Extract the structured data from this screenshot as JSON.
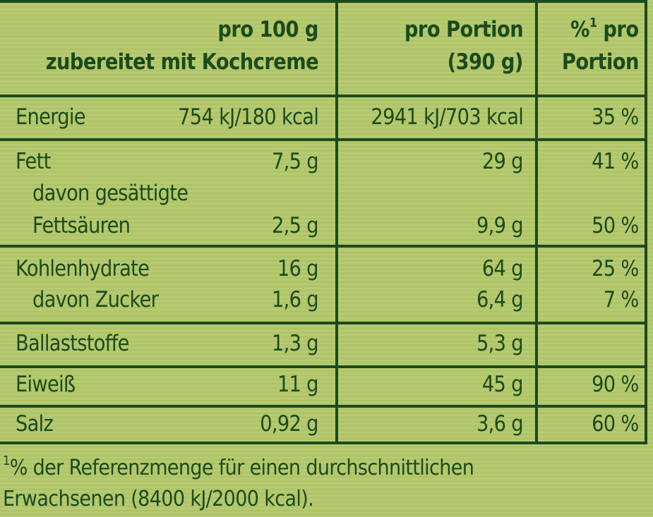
{
  "header": {
    "col100_line1": "pro 100 g",
    "col100_line2": "zubereitet mit Kochcreme",
    "colPortion_line1": "pro Portion",
    "colPortion_line2": "(390 g)",
    "colRef_sup": "1",
    "colRef_pct": "%",
    "colRef_line1_rest": " pro",
    "colRef_line2": "Portion"
  },
  "rows": {
    "energie": {
      "label": "Energie",
      "per100": "754 kJ/180 kcal",
      "portion": "2941 kJ/703 kcal",
      "ref": "35 %"
    },
    "fett": {
      "label": "Fett",
      "per100": "7,5 g",
      "portion": "29 g",
      "ref": "41 %"
    },
    "gesaettigte": {
      "label_line1": "davon gesättigte",
      "label_line2": "Fettsäuren",
      "per100": "2,5 g",
      "portion": "9,9 g",
      "ref": "50 %"
    },
    "kohlenhydrate": {
      "label": "Kohlenhydrate",
      "per100": "16 g",
      "portion": "64 g",
      "ref": "25 %"
    },
    "zucker": {
      "label": "davon Zucker",
      "per100": "1,6 g",
      "portion": "6,4 g",
      "ref": "7 %"
    },
    "ballaststoffe": {
      "label": "Ballaststoffe",
      "per100": "1,3 g",
      "portion": "5,3 g",
      "ref": ""
    },
    "eiweiss": {
      "label": "Eiweiß",
      "per100": "11 g",
      "portion": "45 g",
      "ref": "90 %"
    },
    "salz": {
      "label": "Salz",
      "per100": "0,92 g",
      "portion": "3,6 g",
      "ref": "60 %"
    }
  },
  "footnote": {
    "sup": "1",
    "line1": "% der Referenzmenge für einen durchschnittlichen",
    "line2": "Erwachsenen (8400 kJ/2000 kcal)."
  }
}
